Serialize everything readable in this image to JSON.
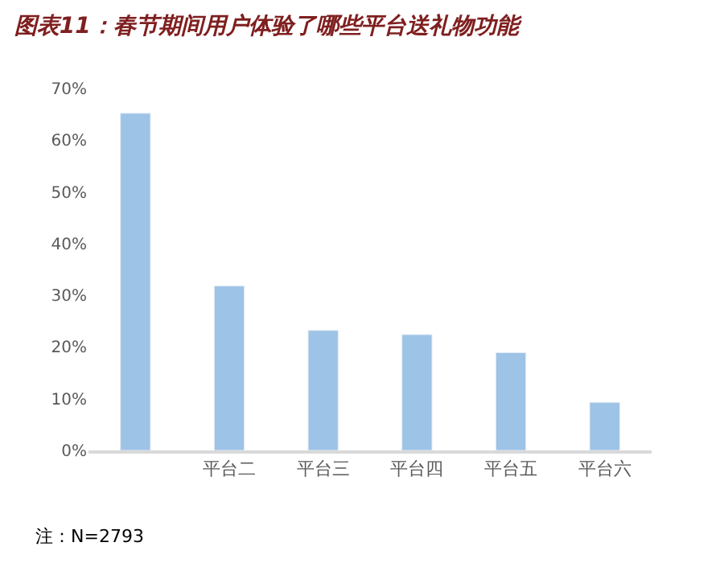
{
  "chart_data": {
    "type": "bar",
    "title": "图表11：春节期间用户体验了哪些平台送礼物功能",
    "categories": [
      null,
      "平台二",
      "平台三",
      "平台四",
      "平台五",
      "平台六"
    ],
    "values": [
      65.2,
      31.8,
      23.2,
      22.4,
      18.9,
      9.3
    ],
    "color": "#9dc3e6",
    "ylim": [
      0,
      70
    ],
    "yticks": [
      {
        "value": 0,
        "label": "0%"
      },
      {
        "value": 10,
        "label": "10%"
      },
      {
        "value": 20,
        "label": "20%"
      },
      {
        "value": 30,
        "label": "30%"
      },
      {
        "value": 40,
        "label": "40%"
      },
      {
        "value": 50,
        "label": "50%"
      },
      {
        "value": 60,
        "label": "60%"
      },
      {
        "value": 70,
        "label": "70%"
      }
    ],
    "legend": false,
    "annotations": [
      "注：N=2793"
    ]
  }
}
